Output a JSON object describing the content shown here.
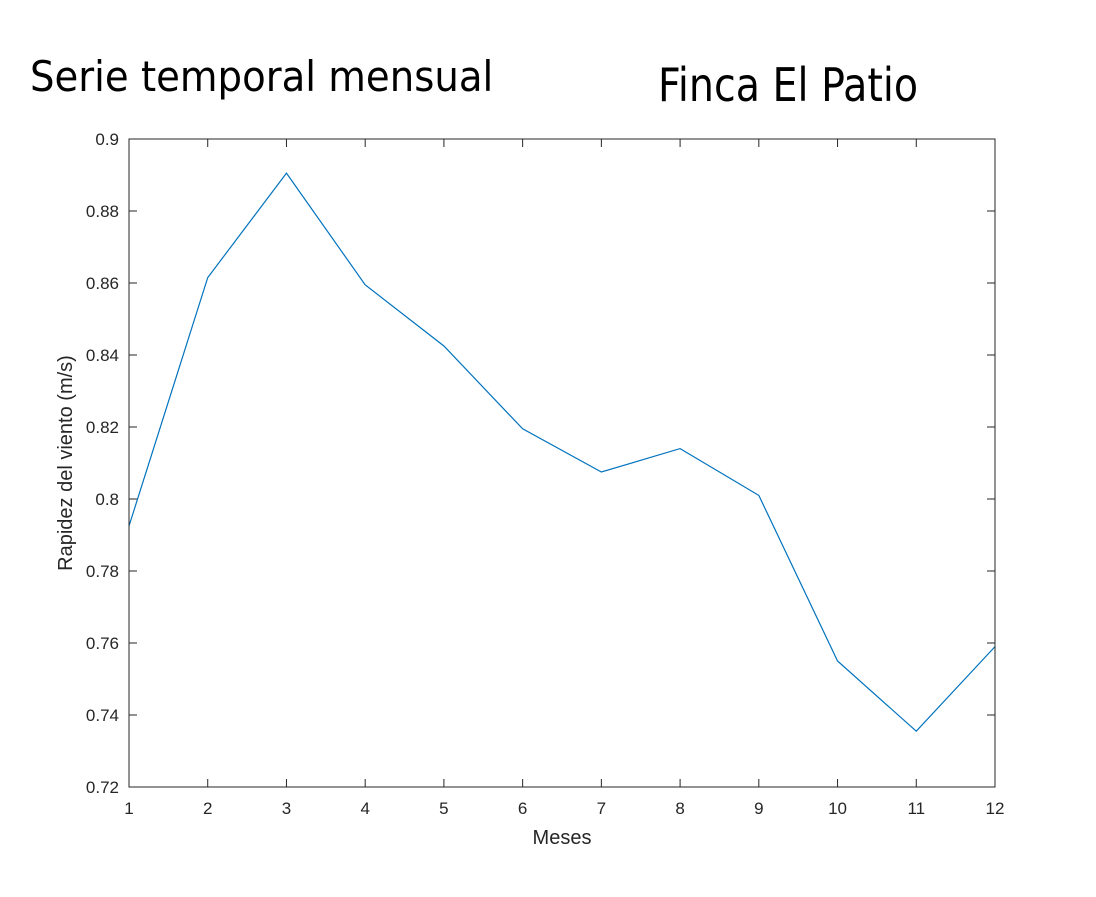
{
  "titles": {
    "left": "Serie temporal mensual",
    "right": "Finca El Patio"
  },
  "chart_data": {
    "type": "line",
    "title": "",
    "xlabel": "Meses",
    "ylabel": "Rapidez del viento (m/s)",
    "xlim": [
      1,
      12
    ],
    "ylim": [
      0.72,
      0.9
    ],
    "xticks": [
      "1",
      "2",
      "3",
      "4",
      "5",
      "6",
      "7",
      "8",
      "9",
      "10",
      "11",
      "12"
    ],
    "yticks": [
      "0.72",
      "0.74",
      "0.76",
      "0.78",
      "0.8",
      "0.82",
      "0.84",
      "0.86",
      "0.88",
      "0.9"
    ],
    "grid": false,
    "line_color": "#0072BD",
    "x": [
      1,
      2,
      3,
      4,
      5,
      6,
      7,
      8,
      9,
      10,
      11,
      12
    ],
    "series": [
      {
        "values": [
          0.7925,
          0.8615,
          0.8905,
          0.8595,
          0.8425,
          0.8195,
          0.8075,
          0.814,
          0.801,
          0.755,
          0.7355,
          0.759
        ]
      }
    ]
  }
}
